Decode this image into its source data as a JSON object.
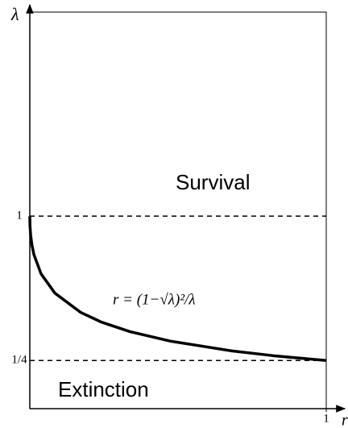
{
  "chart_data": {
    "type": "line",
    "xlabel": "r",
    "ylabel": "λ",
    "annotations": [
      "Survival",
      "Extinction",
      "r = (1−√λ)²/λ"
    ],
    "xlim": [
      0,
      1
    ],
    "ylim": [
      0,
      2.06
    ],
    "xticks": [
      1
    ],
    "yticks": [
      {
        "value": 0.25,
        "label": "1/4"
      },
      1
    ],
    "grid": true,
    "series": [
      {
        "color": "#000000",
        "x": [
          0,
          0.000675,
          0.00293,
          0.00717,
          0.01393,
          0.03811,
          0.08468,
          0.17157,
          0.2408,
          0.33772,
          0.47652,
          0.68187,
          0.82251,
          1
        ],
        "values": [
          1,
          0.95,
          0.9,
          0.85,
          0.8,
          0.7,
          0.6,
          0.5,
          0.45,
          0.4,
          0.35,
          0.3,
          0.275,
          0.25
        ]
      }
    ]
  }
}
